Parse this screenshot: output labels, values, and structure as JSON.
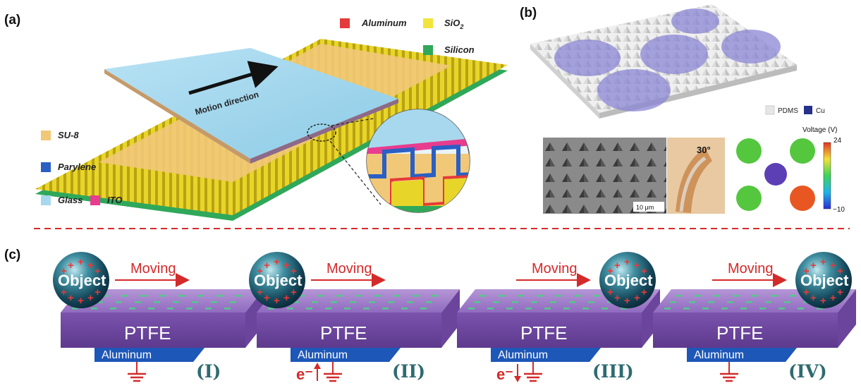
{
  "panel_a": {
    "label": "(a)",
    "motion_label": "Motion direction",
    "legend": [
      {
        "text": "Aluminum",
        "color": "#e53a3a"
      },
      {
        "text": "SiO",
        "sub": "2",
        "color": "#f2e43a"
      },
      {
        "text": "Silicon",
        "color": "#2fa85a"
      },
      {
        "text": "SU-8",
        "color": "#f1c878"
      },
      {
        "text": "Parylene",
        "color": "#2a5fc4"
      },
      {
        "text": "Glass",
        "color": "#a8d8ee"
      },
      {
        "text": "ITO",
        "color": "#e83c8e"
      }
    ]
  },
  "panel_b": {
    "label": "(b)",
    "legend": [
      {
        "text": "PDMS",
        "color": "#e6e6e6"
      },
      {
        "text": "Cu",
        "color": "#25318a"
      }
    ],
    "sem_scale": "10 μm",
    "bend_angle": "30°",
    "colorbar_title": "Voltage (V)",
    "colorbar_max": "24",
    "colorbar_min": "−10"
  },
  "panel_c": {
    "label": "(c)",
    "moving_label": "Moving",
    "object_label": "Object",
    "ptfe_label": "PTFE",
    "aluminum_label": "Aluminum",
    "electron_label": "e⁻",
    "stages": [
      {
        "numeral": "(I)"
      },
      {
        "numeral": "(II)"
      },
      {
        "numeral": "(III)"
      },
      {
        "numeral": "(IV)"
      }
    ]
  }
}
